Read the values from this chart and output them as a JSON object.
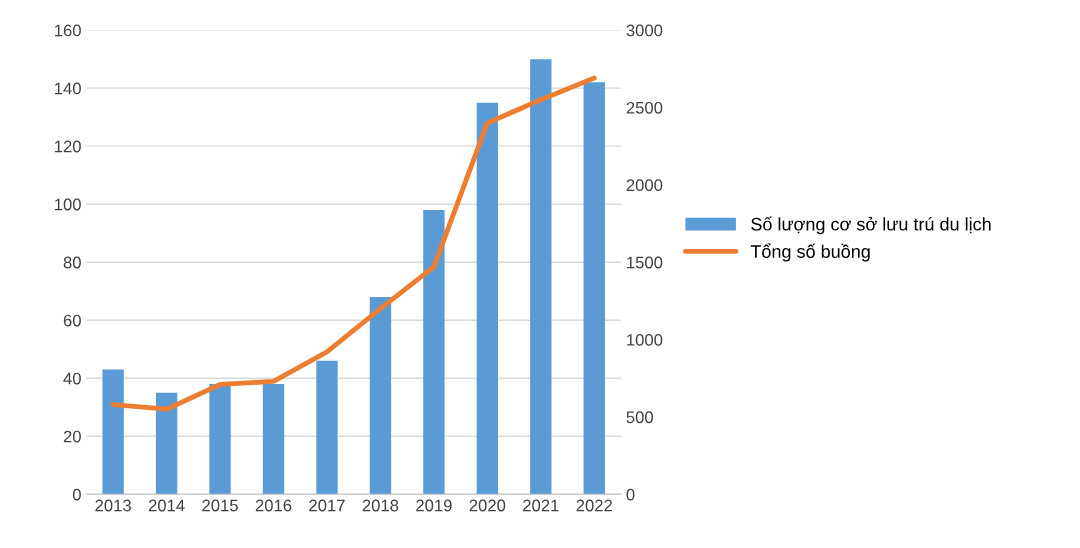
{
  "chart_data": {
    "type": "bar",
    "categories": [
      "2013",
      "2014",
      "2015",
      "2016",
      "2017",
      "2018",
      "2019",
      "2020",
      "2021",
      "2022"
    ],
    "series": [
      {
        "name": "Số lượng cơ sở lưu trú du lịch",
        "color": "#5b9bd5",
        "values": [
          43,
          35,
          38,
          38,
          46,
          68,
          98,
          135,
          150,
          142
        ]
      },
      {
        "name": "Tổng số buồng",
        "type": "line",
        "axis": "y2",
        "color": "#ed7d31",
        "values": [
          580,
          550,
          710,
          730,
          920,
          1200,
          1470,
          2400,
          2550,
          2690
        ]
      }
    ],
    "ylim": [
      0,
      160
    ],
    "yticks": [
      0,
      20,
      40,
      60,
      80,
      100,
      120,
      140,
      160
    ],
    "y2lim": [
      0,
      3000
    ],
    "y2ticks": [
      0,
      500,
      1000,
      1500,
      2000,
      2500,
      3000
    ],
    "grid": "y",
    "legend": "right",
    "marker": "none",
    "line_style": "solid"
  }
}
